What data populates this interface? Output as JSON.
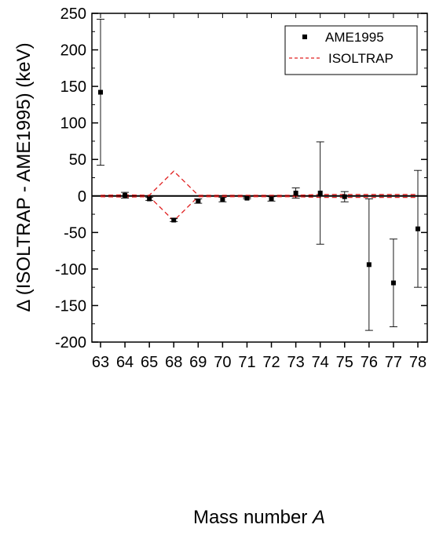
{
  "chart_data": {
    "type": "scatter",
    "title": "",
    "xlabel": "Mass number",
    "xlabel_italic": "A",
    "ylabel": "Δ (ISOLTRAP - AME1995) (keV)",
    "ylim": [
      -200,
      250
    ],
    "yticks": [
      -200,
      -150,
      -100,
      -50,
      0,
      50,
      100,
      150,
      200,
      250
    ],
    "categories": [
      "63",
      "64",
      "65",
      "68",
      "69",
      "70",
      "71",
      "72",
      "73",
      "74",
      "75",
      "76",
      "77",
      "78"
    ],
    "grid": false,
    "legend_position": "top-right",
    "series": [
      {
        "name": "AME1995",
        "style": "points-with-errorbars",
        "color": "#000000",
        "values": [
          142,
          1,
          -4,
          -33,
          -7,
          -5,
          -3,
          -4,
          4,
          4,
          -1,
          -94,
          -119,
          -45
        ],
        "errors": [
          100,
          4,
          2,
          2,
          3,
          3,
          1,
          3,
          7,
          70,
          7,
          90,
          60,
          80
        ]
      },
      {
        "name": "ISOLTRAP",
        "style": "dashed-envelope",
        "color": "#e02020",
        "upper": [
          1,
          1.5,
          1,
          34,
          1,
          1,
          1,
          1,
          1,
          2,
          2,
          2,
          2,
          2
        ],
        "lower": [
          -1,
          -1.5,
          -1,
          -34,
          -1,
          -1,
          -1,
          -1,
          -1,
          -2,
          -2,
          -2,
          -2,
          -2
        ]
      }
    ]
  }
}
